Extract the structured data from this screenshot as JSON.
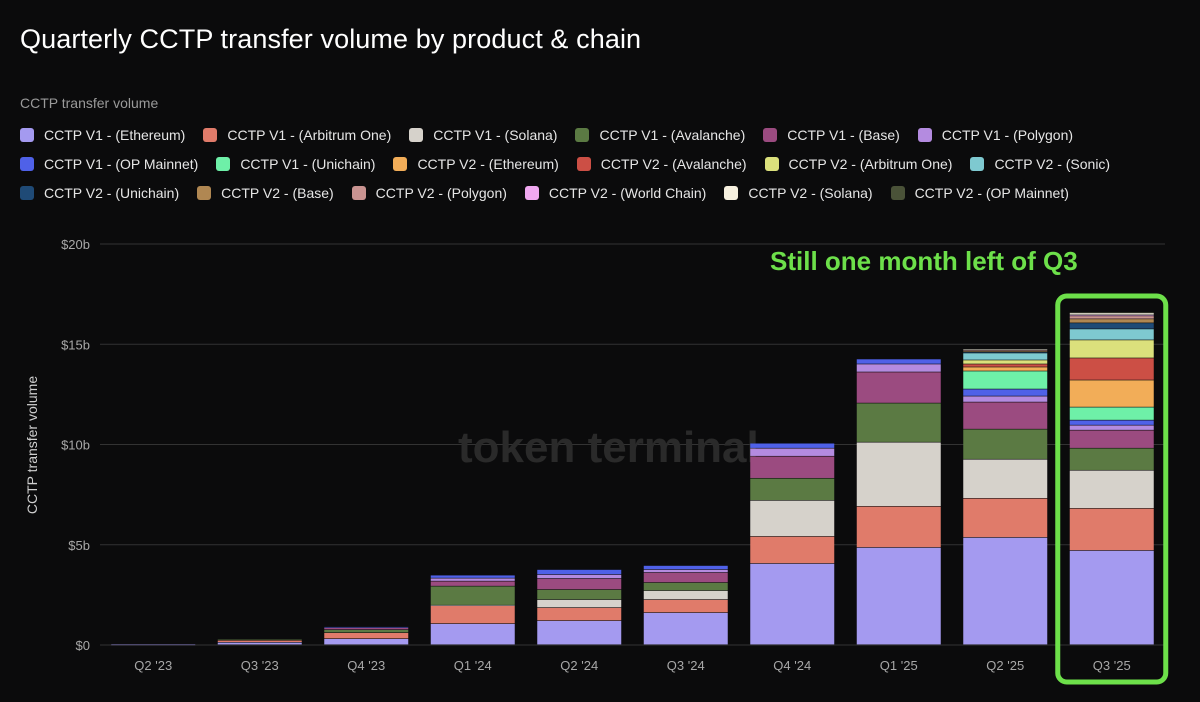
{
  "chart_data": {
    "type": "bar",
    "stacked": true,
    "title": "Quarterly CCTP transfer volume by product & chain",
    "legend_title": "CCTP transfer volume",
    "ylabel": "CCTP transfer volume",
    "xlabel": "",
    "ylim": [
      0,
      20
    ],
    "yticks": [
      "$0",
      "$5b",
      "$10b",
      "$15b",
      "$20b"
    ],
    "ytick_values": [
      0,
      5,
      10,
      15,
      20
    ],
    "grid": true,
    "legend_position": "top",
    "watermark": "token terminal_",
    "annotation": "Still one month left of Q3",
    "highlight_category": "Q3 '25",
    "categories": [
      "Q2 '23",
      "Q3 '23",
      "Q4 '23",
      "Q1 '24",
      "Q2 '24",
      "Q3 '24",
      "Q4 '24",
      "Q1 '25",
      "Q2 '25",
      "Q3 '25"
    ],
    "series": [
      {
        "name": "CCTP V1 - (Ethereum)",
        "color": "#a49af0",
        "values": [
          0.02,
          0.12,
          0.3,
          1.05,
          1.2,
          1.6,
          4.05,
          4.85,
          5.35,
          4.7
        ]
      },
      {
        "name": "CCTP V1 - (Arbitrum One)",
        "color": "#e07b6a",
        "values": [
          0,
          0.1,
          0.3,
          0.9,
          0.65,
          0.65,
          1.35,
          2.05,
          1.95,
          2.1
        ]
      },
      {
        "name": "CCTP V1 - (Solana)",
        "color": "#d6d2cb",
        "values": [
          0,
          0,
          0,
          0.02,
          0.4,
          0.45,
          1.8,
          3.2,
          1.95,
          1.9
        ]
      },
      {
        "name": "CCTP V1 - (Avalanche)",
        "color": "#5b7a43",
        "values": [
          0,
          0.05,
          0.15,
          0.95,
          0.5,
          0.4,
          1.1,
          1.95,
          1.5,
          1.1
        ]
      },
      {
        "name": "CCTP V1 - (Base)",
        "color": "#9b4b80",
        "values": [
          0,
          0,
          0.1,
          0.25,
          0.55,
          0.5,
          1.1,
          1.55,
          1.35,
          0.9
        ]
      },
      {
        "name": "CCTP V1 - (Polygon)",
        "color": "#b48be0",
        "values": [
          0,
          0,
          0,
          0.15,
          0.2,
          0.15,
          0.4,
          0.4,
          0.3,
          0.25
        ]
      },
      {
        "name": "CCTP V1 - (OP Mainnet)",
        "color": "#4f61e8",
        "values": [
          0,
          0,
          0.05,
          0.15,
          0.25,
          0.2,
          0.25,
          0.25,
          0.35,
          0.25
        ]
      },
      {
        "name": "CCTP V1 - (Unichain)",
        "color": "#6ef0a8",
        "values": [
          0,
          0,
          0,
          0,
          0,
          0,
          0,
          0,
          0.9,
          0.65
        ]
      },
      {
        "name": "CCTP V2 - (Ethereum)",
        "color": "#f2ad58",
        "values": [
          0,
          0,
          0,
          0,
          0,
          0,
          0,
          0,
          0.2,
          1.35
        ]
      },
      {
        "name": "CCTP V2 - (Avalanche)",
        "color": "#cc4f45",
        "values": [
          0,
          0,
          0,
          0,
          0,
          0,
          0,
          0,
          0.15,
          1.1
        ]
      },
      {
        "name": "CCTP V2 - (Arbitrum One)",
        "color": "#dbe07c",
        "values": [
          0,
          0,
          0,
          0,
          0,
          0,
          0,
          0,
          0.2,
          0.9
        ]
      },
      {
        "name": "CCTP V2 - (Sonic)",
        "color": "#7ec9d0",
        "values": [
          0,
          0,
          0,
          0,
          0,
          0,
          0,
          0,
          0.35,
          0.55
        ]
      },
      {
        "name": "CCTP V2 - (Unichain)",
        "color": "#1f4a76",
        "values": [
          0,
          0,
          0,
          0,
          0,
          0,
          0,
          0,
          0.05,
          0.3
        ]
      },
      {
        "name": "CCTP V2 - (Base)",
        "color": "#b08752",
        "values": [
          0,
          0,
          0,
          0,
          0,
          0,
          0,
          0,
          0.05,
          0.2
        ]
      },
      {
        "name": "CCTP V2 - (Polygon)",
        "color": "#c99391",
        "values": [
          0,
          0,
          0,
          0,
          0,
          0,
          0,
          0,
          0.05,
          0.15
        ]
      },
      {
        "name": "CCTP V2 - (World Chain)",
        "color": "#f0a8f0",
        "values": [
          0,
          0,
          0,
          0,
          0,
          0,
          0,
          0,
          0,
          0.05
        ]
      },
      {
        "name": "CCTP V2 - (Solana)",
        "color": "#f6f0df",
        "values": [
          0,
          0,
          0,
          0,
          0,
          0,
          0,
          0,
          0.05,
          0.1
        ]
      },
      {
        "name": "CCTP V2 - (OP Mainnet)",
        "color": "#4a5238",
        "values": [
          0,
          0,
          0,
          0,
          0,
          0,
          0,
          0,
          0,
          0.05
        ]
      }
    ]
  },
  "colors": {
    "background": "#0b0b0c",
    "grid": "#333333",
    "highlight": "#6de04a"
  }
}
